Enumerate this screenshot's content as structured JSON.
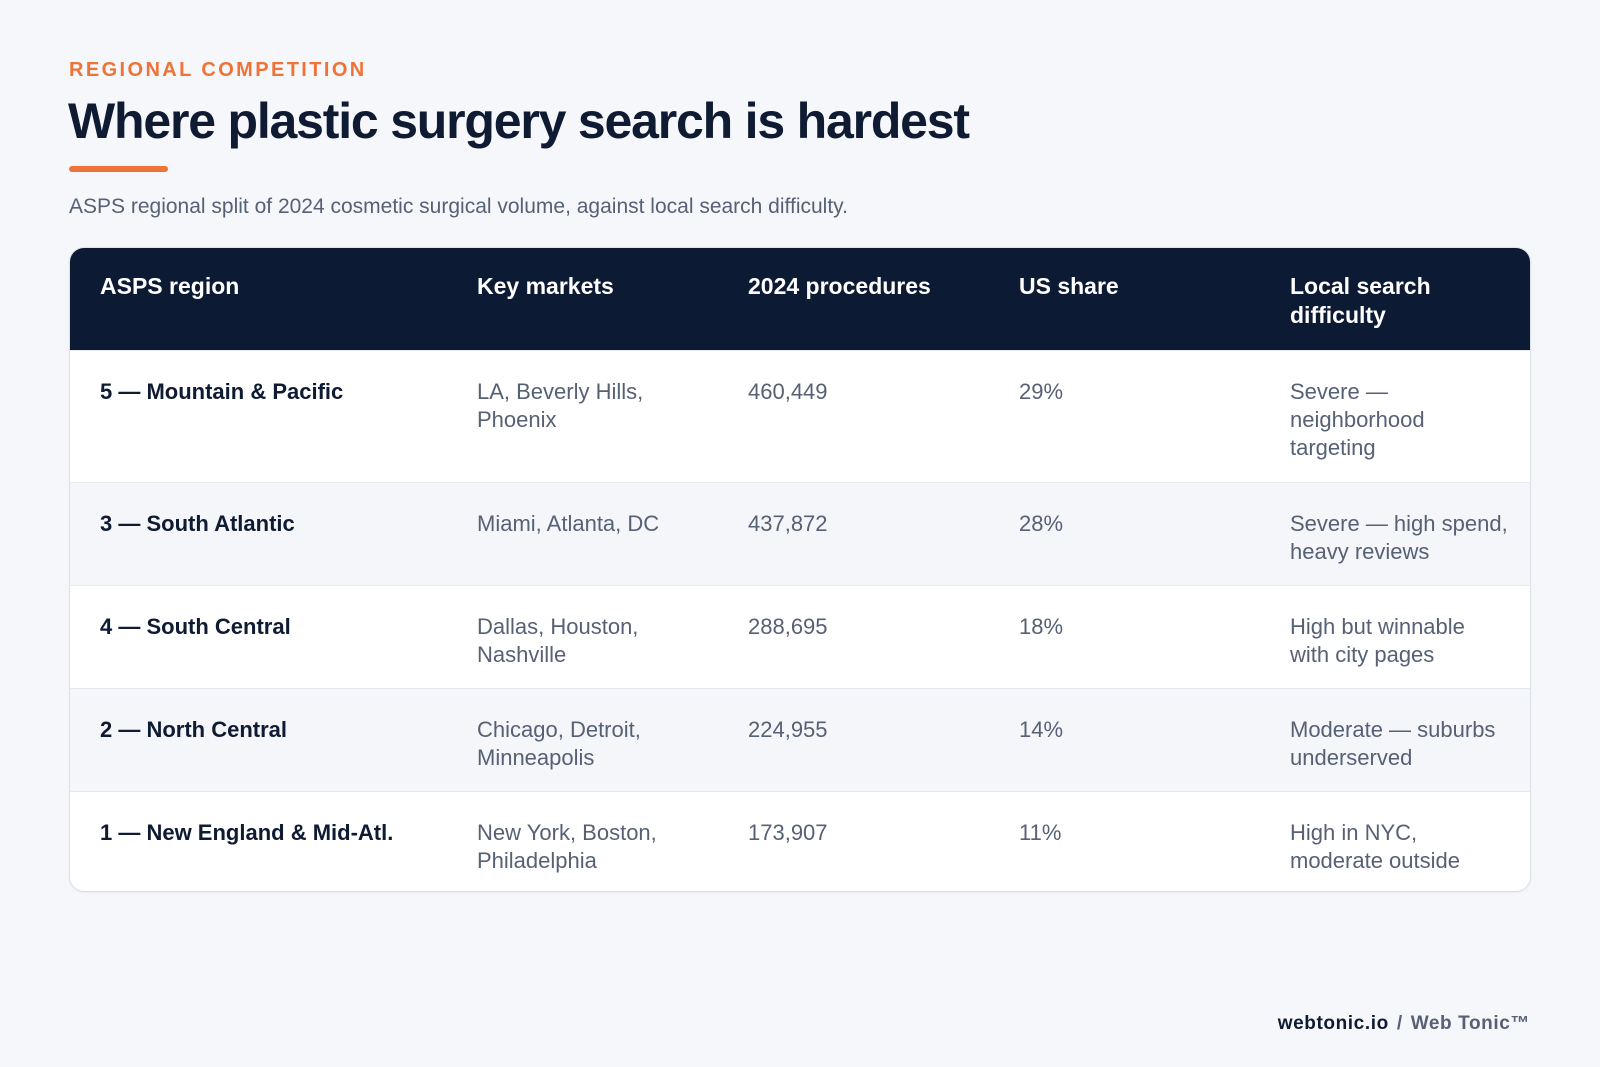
{
  "header": {
    "eyebrow": "REGIONAL COMPETITION",
    "title": "Where plastic surgery search is hardest",
    "subtitle": "ASPS regional split of 2024 cosmetic surgical volume, against local search difficulty."
  },
  "table": {
    "columns": [
      "ASPS region",
      "Key markets",
      "2024 procedures",
      "US share",
      "Local search difficulty"
    ],
    "rows": [
      {
        "region": "5 — Mountain & Pacific",
        "markets": "LA, Beverly Hills, Phoenix",
        "procedures": "460,449",
        "share": "29%",
        "difficulty": "Severe — neighborhood targeting"
      },
      {
        "region": "3 — South Atlantic",
        "markets": "Miami, Atlanta, DC",
        "procedures": "437,872",
        "share": "28%",
        "difficulty": "Severe — high spend, heavy reviews"
      },
      {
        "region": "4 — South Central",
        "markets": "Dallas, Houston, Nashville",
        "procedures": "288,695",
        "share": "18%",
        "difficulty": "High but winnable with city pages"
      },
      {
        "region": "2 — North Central",
        "markets": "Chicago, Detroit, Minneapolis",
        "procedures": "224,955",
        "share": "14%",
        "difficulty": "Moderate — suburbs underserved"
      },
      {
        "region": "1 — New England & Mid-Atl.",
        "markets": "New York, Boston, Philadelphia",
        "procedures": "173,907",
        "share": "11%",
        "difficulty": "High in NYC, moderate outside"
      }
    ]
  },
  "footer": {
    "domain": "webtonic.io",
    "separator": "/",
    "brand": "Web Tonic™"
  },
  "colors": {
    "accent": "#ef7336",
    "header_bg": "#0d1a33",
    "page_bg": "#f5f7fa",
    "alt_row_bg": "#f4f6f9"
  }
}
